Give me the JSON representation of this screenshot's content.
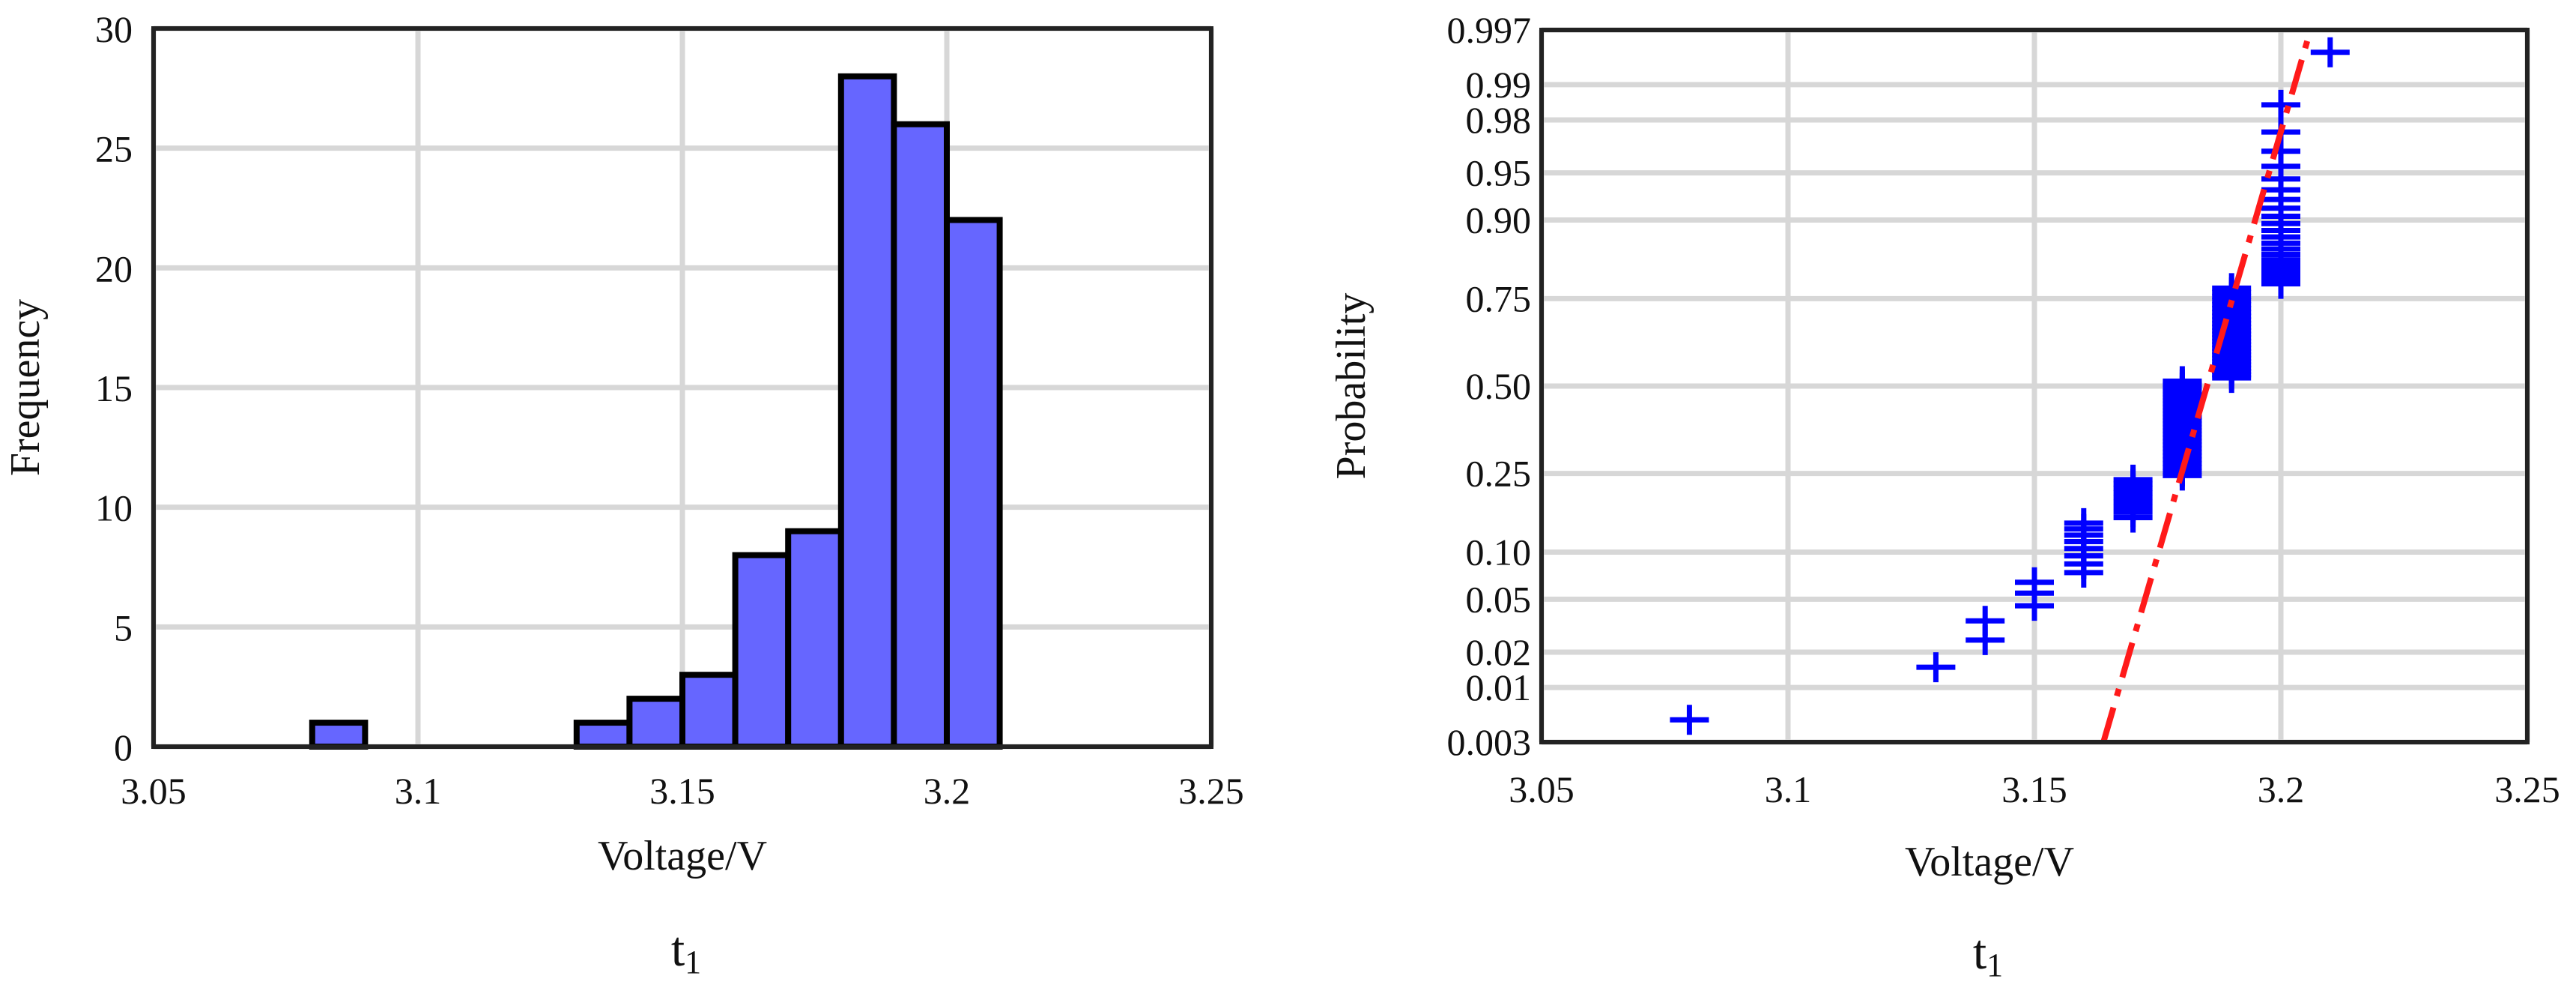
{
  "chart_data": [
    {
      "type": "bar",
      "subtype": "histogram",
      "caption": "t",
      "caption_subscript": "1",
      "xlabel": "Voltage/V",
      "ylabel": "Frequency",
      "xlim": [
        3.05,
        3.25
      ],
      "ylim": [
        0,
        30
      ],
      "xticks": [
        "3.05",
        "3.1",
        "3.15",
        "3.2",
        "3.25"
      ],
      "yticks": [
        "0",
        "5",
        "10",
        "15",
        "20",
        "25",
        "30"
      ],
      "bin_width": 0.01,
      "bins": [
        {
          "x0": 3.08,
          "x1": 3.09,
          "count": 1
        },
        {
          "x0": 3.13,
          "x1": 3.14,
          "count": 1
        },
        {
          "x0": 3.14,
          "x1": 3.15,
          "count": 2
        },
        {
          "x0": 3.15,
          "x1": 3.16,
          "count": 3
        },
        {
          "x0": 3.16,
          "x1": 3.17,
          "count": 8
        },
        {
          "x0": 3.17,
          "x1": 3.18,
          "count": 9
        },
        {
          "x0": 3.18,
          "x1": 3.19,
          "count": 28
        },
        {
          "x0": 3.19,
          "x1": 3.2,
          "count": 26
        },
        {
          "x0": 3.2,
          "x1": 3.21,
          "count": 22
        }
      ],
      "grid": true,
      "bar_color": "#6666ff",
      "edge_color": "#000000"
    },
    {
      "type": "scatter",
      "subtype": "normal probability plot",
      "caption": "t",
      "caption_subscript": "1",
      "xlabel": "Voltage/V",
      "ylabel": "Probability",
      "xlim": [
        3.05,
        3.25
      ],
      "xticks": [
        "3.05",
        "3.1",
        "3.15",
        "3.2",
        "3.25"
      ],
      "y_scale": "normal probability",
      "yticks": [
        "0.003",
        "0.01",
        "0.02",
        "0.05",
        "0.10",
        "0.25",
        "0.50",
        "0.75",
        "0.90",
        "0.95",
        "0.98",
        "0.99",
        "0.997"
      ],
      "points": [
        {
          "x": 3.08,
          "p": [
            0.005
          ]
        },
        {
          "x": 3.13,
          "p": [
            0.015
          ]
        },
        {
          "x": 3.14,
          "p": [
            0.025,
            0.035
          ]
        },
        {
          "x": 3.15,
          "p": [
            0.045,
            0.055,
            0.065
          ]
        },
        {
          "x": 3.16,
          "p": [
            0.075,
            0.085,
            0.095,
            0.105,
            0.115,
            0.125,
            0.135,
            0.145
          ]
        },
        {
          "x": 3.17,
          "p": [
            0.155,
            0.165,
            0.175,
            0.185,
            0.195,
            0.205,
            0.215,
            0.225,
            0.235
          ]
        },
        {
          "x": 3.18,
          "p": [
            0.245,
            0.255,
            0.265,
            0.275,
            0.285,
            0.295,
            0.305,
            0.315,
            0.325,
            0.335,
            0.345,
            0.355,
            0.365,
            0.375,
            0.385,
            0.395,
            0.405,
            0.415,
            0.425,
            0.435,
            0.445,
            0.455,
            0.465,
            0.475,
            0.485,
            0.495,
            0.505,
            0.515
          ]
        },
        {
          "x": 3.19,
          "p": [
            0.525,
            0.535,
            0.545,
            0.555,
            0.565,
            0.575,
            0.585,
            0.595,
            0.605,
            0.615,
            0.625,
            0.635,
            0.645,
            0.655,
            0.665,
            0.675,
            0.685,
            0.695,
            0.705,
            0.715,
            0.725,
            0.735,
            0.745,
            0.755,
            0.765,
            0.775
          ]
        },
        {
          "x": 3.2,
          "p": [
            0.785,
            0.795,
            0.805,
            0.815,
            0.825,
            0.835,
            0.845,
            0.855,
            0.865,
            0.875,
            0.885,
            0.895,
            0.905,
            0.915,
            0.925,
            0.935,
            0.945,
            0.955,
            0.965,
            0.975,
            0.985
          ]
        },
        {
          "x": 3.21,
          "p": [
            0.995
          ]
        }
      ],
      "reference_line": {
        "style": "dash-dot",
        "color": "#ff0000",
        "from": {
          "x": 3.164,
          "p": 0.003
        },
        "to": {
          "x": 3.206,
          "p": 0.997
        }
      },
      "marker": "+",
      "marker_color": "#0000ff",
      "grid": true
    }
  ]
}
